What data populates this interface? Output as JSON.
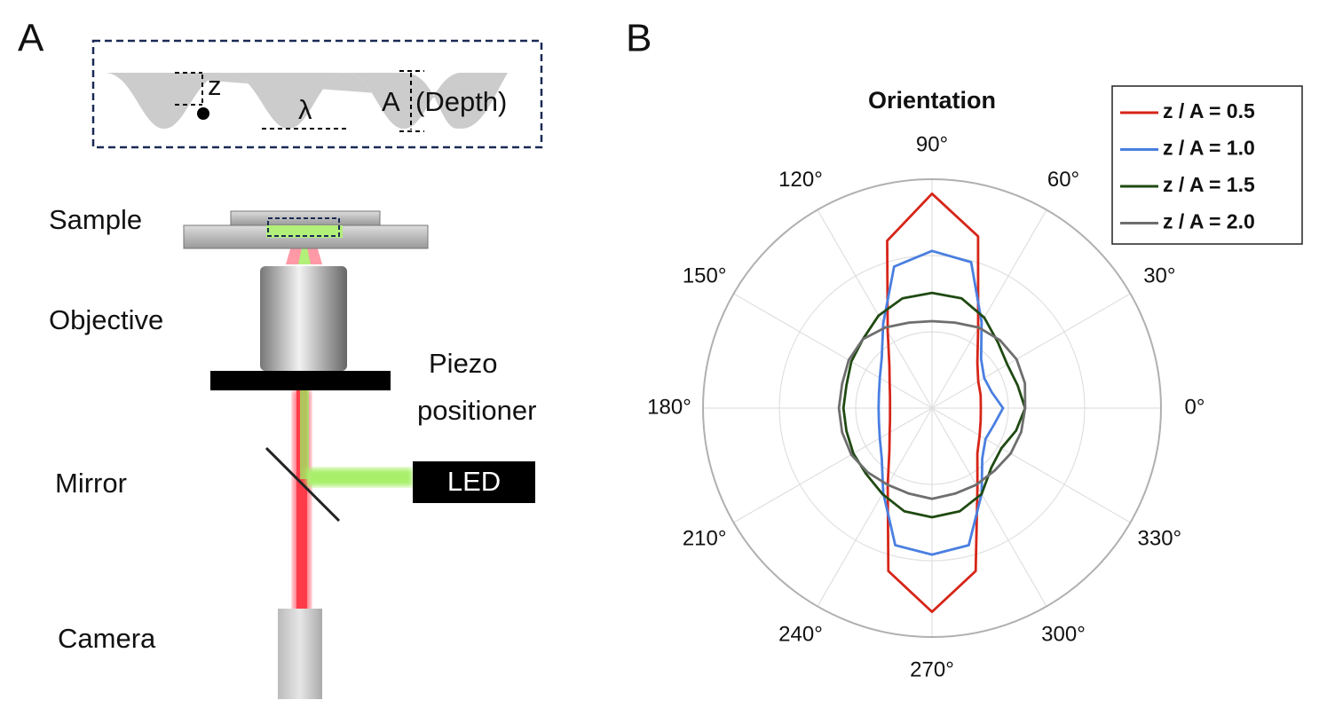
{
  "panels": [
    "A",
    "B"
  ],
  "panel_a": {
    "inset": {
      "z": "z",
      "lambda": "λ",
      "amplitude": "A",
      "depth": "(Depth)"
    },
    "labels": {
      "sample": "Sample",
      "objective": "Objective",
      "piezo": [
        "Piezo",
        "positioner"
      ],
      "mirror": "Mirror",
      "led": "LED",
      "camera": "Camera"
    }
  },
  "chart_data": {
    "type": "polar",
    "title": "Orientation",
    "theta": [
      0,
      15,
      30,
      45,
      60,
      75,
      90,
      105,
      120,
      135,
      150,
      165,
      180,
      195,
      210,
      225,
      240,
      255,
      270,
      285,
      300,
      315,
      330,
      345
    ],
    "rlim": [
      0,
      3
    ],
    "rticks": [
      1,
      2,
      3
    ],
    "thetaticks": [
      {
        "value": 0,
        "label": "0°"
      },
      {
        "value": 30,
        "label": "30°"
      },
      {
        "value": 60,
        "label": "60°"
      },
      {
        "value": 90,
        "label": "90°"
      },
      {
        "value": 120,
        "label": "120°"
      },
      {
        "value": 150,
        "label": "150°"
      },
      {
        "value": 180,
        "label": "180°"
      },
      {
        "value": 210,
        "label": "210°"
      },
      {
        "value": 240,
        "label": "240°"
      },
      {
        "value": 270,
        "label": "270°"
      },
      {
        "value": 300,
        "label": "300°"
      },
      {
        "value": 330,
        "label": "330°"
      }
    ],
    "grid": true,
    "legend": "upper right",
    "series": [
      {
        "name": "z / A = 0.5",
        "color": "#d62518",
        "values": [
          0.64,
          0.66,
          0.7,
          0.84,
          1.21,
          2.33,
          2.81,
          2.27,
          1.16,
          0.79,
          0.64,
          0.57,
          0.55,
          0.57,
          0.64,
          0.79,
          1.16,
          2.21,
          2.67,
          2.21,
          1.19,
          0.84,
          0.72,
          0.66
        ]
      },
      {
        "name": "z / A = 1.0",
        "color": "#4a7fe0",
        "values": [
          0.93,
          0.81,
          0.79,
          0.91,
          1.3,
          1.98,
          2.06,
          1.92,
          1.28,
          0.93,
          0.79,
          0.72,
          0.7,
          0.72,
          0.79,
          0.93,
          1.28,
          1.86,
          1.92,
          1.86,
          1.3,
          0.93,
          0.81,
          0.84
        ]
      },
      {
        "name": "z / A = 1.5",
        "color": "#1f4a12",
        "values": [
          1.22,
          1.16,
          1.14,
          1.22,
          1.37,
          1.49,
          1.51,
          1.49,
          1.4,
          1.28,
          1.22,
          1.16,
          1.16,
          1.16,
          1.19,
          1.22,
          1.3,
          1.4,
          1.43,
          1.4,
          1.3,
          1.1,
          1.05,
          1.14
        ]
      },
      {
        "name": "z / A = 2.0",
        "color": "#6e6e6e",
        "values": [
          1.22,
          1.26,
          1.28,
          1.26,
          1.22,
          1.16,
          1.14,
          1.16,
          1.22,
          1.28,
          1.26,
          1.22,
          1.22,
          1.22,
          1.22,
          1.19,
          1.16,
          1.16,
          1.19,
          1.16,
          1.16,
          1.16,
          1.19,
          1.21
        ]
      }
    ]
  }
}
